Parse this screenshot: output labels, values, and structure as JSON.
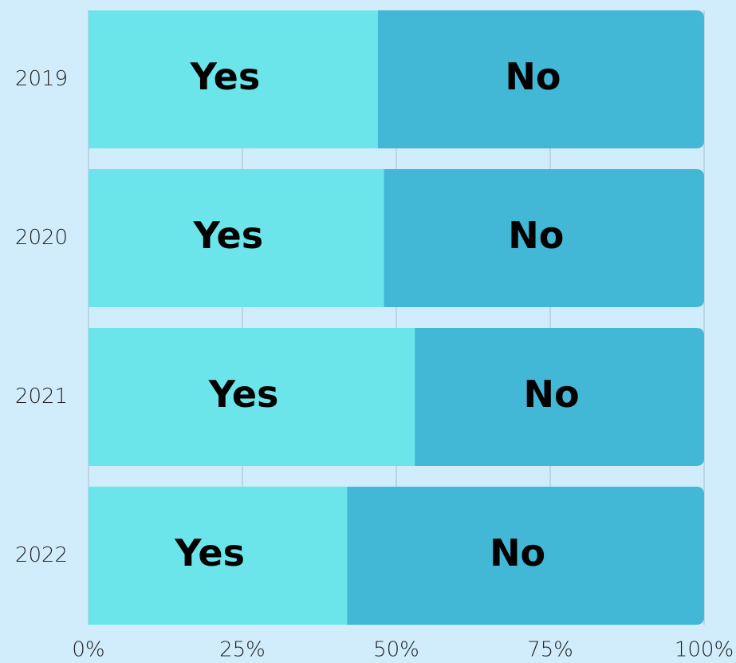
{
  "chart_data": {
    "type": "stacked_bar_horizontal",
    "categories": [
      "2019",
      "2020",
      "2021",
      "2022"
    ],
    "series": [
      {
        "name": "Yes",
        "color": "#6ce5ea",
        "values": [
          47,
          48,
          53,
          42
        ]
      },
      {
        "name": "No",
        "color": "#42b7d6",
        "values": [
          53,
          52,
          47,
          58
        ]
      }
    ],
    "xlim": [
      0,
      100
    ],
    "xticks": [
      {
        "value": 0,
        "label": "0%"
      },
      {
        "value": 25,
        "label": "25%"
      },
      {
        "value": 50,
        "label": "50%"
      },
      {
        "value": 75,
        "label": "75%"
      },
      {
        "value": 100,
        "label": "100%"
      }
    ],
    "grid": true
  }
}
